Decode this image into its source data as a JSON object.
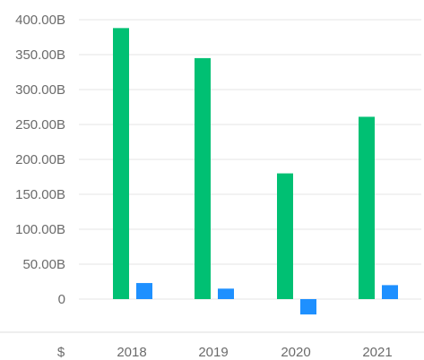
{
  "chart_data": {
    "type": "bar",
    "title": "",
    "xlabel": "",
    "ylabel": "",
    "currency_label": "$",
    "categories": [
      "2018",
      "2019",
      "2020",
      "2021"
    ],
    "y_ticks": [
      {
        "value": 0,
        "label": "0"
      },
      {
        "value": 50,
        "label": "50.00B"
      },
      {
        "value": 100,
        "label": "100.00B"
      },
      {
        "value": 150,
        "label": "150.00B"
      },
      {
        "value": 200,
        "label": "200.00B"
      },
      {
        "value": 250,
        "label": "250.00B"
      },
      {
        "value": 300,
        "label": "300.00B"
      },
      {
        "value": 350,
        "label": "350.00B"
      },
      {
        "value": 400,
        "label": "400.00B"
      }
    ],
    "ylim": [
      -25,
      400
    ],
    "units": "billions USD",
    "grid": true,
    "legend": "none",
    "series": [
      {
        "color": "#00c073",
        "values": [
          388,
          345,
          180,
          261
        ]
      },
      {
        "color": "#1e90ff",
        "values": [
          23,
          15,
          -22,
          20
        ]
      }
    ]
  }
}
